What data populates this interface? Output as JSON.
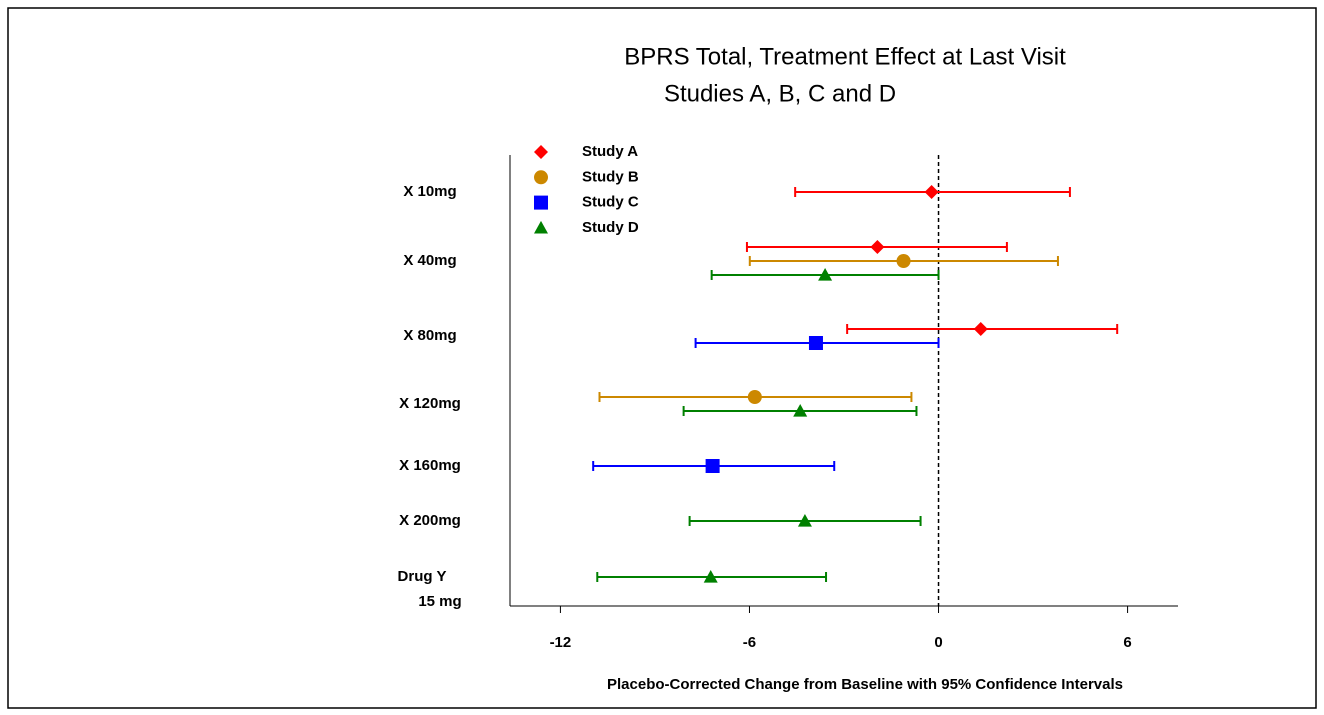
{
  "chart_data": {
    "type": "forest",
    "title": "BPRS Total, Treatment Effect at Last Visit",
    "subtitle": "Studies A, B, C and D",
    "x_label": "Placebo-Corrected Change from Baseline with 95% Confidence Intervals",
    "categories": [
      "X 10mg",
      "X 40mg",
      "X 80mg",
      "X 120mg",
      "X 160mg",
      "X 200mg",
      "Drug Y\n15 mg"
    ],
    "xlim": [
      -13.6,
      7.6
    ],
    "xticks": [
      -12,
      -6,
      0,
      6
    ],
    "reference_x": 0,
    "legend": "upper-left",
    "series": [
      {
        "name": "Study A",
        "color": "#ff0000",
        "marker": "diamond",
        "values": [
          -0.22,
          -1.94,
          1.34,
          null,
          null,
          null,
          null
        ],
        "lower": [
          -4.55,
          -6.08,
          -2.9,
          null,
          null,
          null,
          null
        ],
        "upper": [
          4.17,
          2.17,
          5.67,
          null,
          null,
          null,
          null
        ]
      },
      {
        "name": "Study B",
        "color": "#cc8800",
        "marker": "circle",
        "values": [
          null,
          -1.11,
          null,
          -5.83,
          null,
          null,
          null
        ],
        "lower": [
          null,
          -5.99,
          null,
          -10.76,
          null,
          null,
          null
        ],
        "upper": [
          null,
          3.79,
          null,
          -0.86,
          null,
          null,
          null
        ]
      },
      {
        "name": "Study C",
        "color": "#0000ff",
        "marker": "square",
        "values": [
          null,
          null,
          -3.89,
          null,
          -7.17,
          null,
          null
        ],
        "lower": [
          null,
          null,
          -7.71,
          null,
          -10.96,
          null,
          null
        ],
        "upper": [
          null,
          null,
          0,
          null,
          -3.31,
          null,
          null
        ]
      },
      {
        "name": "Study D",
        "color": "#008000",
        "marker": "triangle",
        "values": [
          null,
          -3.6,
          null,
          -4.39,
          null,
          -4.24,
          -7.23
        ],
        "lower": [
          null,
          -7.2,
          null,
          -8.09,
          null,
          -7.9,
          -10.83
        ],
        "upper": [
          null,
          0,
          null,
          -0.7,
          null,
          -0.57,
          -3.57
        ]
      }
    ]
  }
}
